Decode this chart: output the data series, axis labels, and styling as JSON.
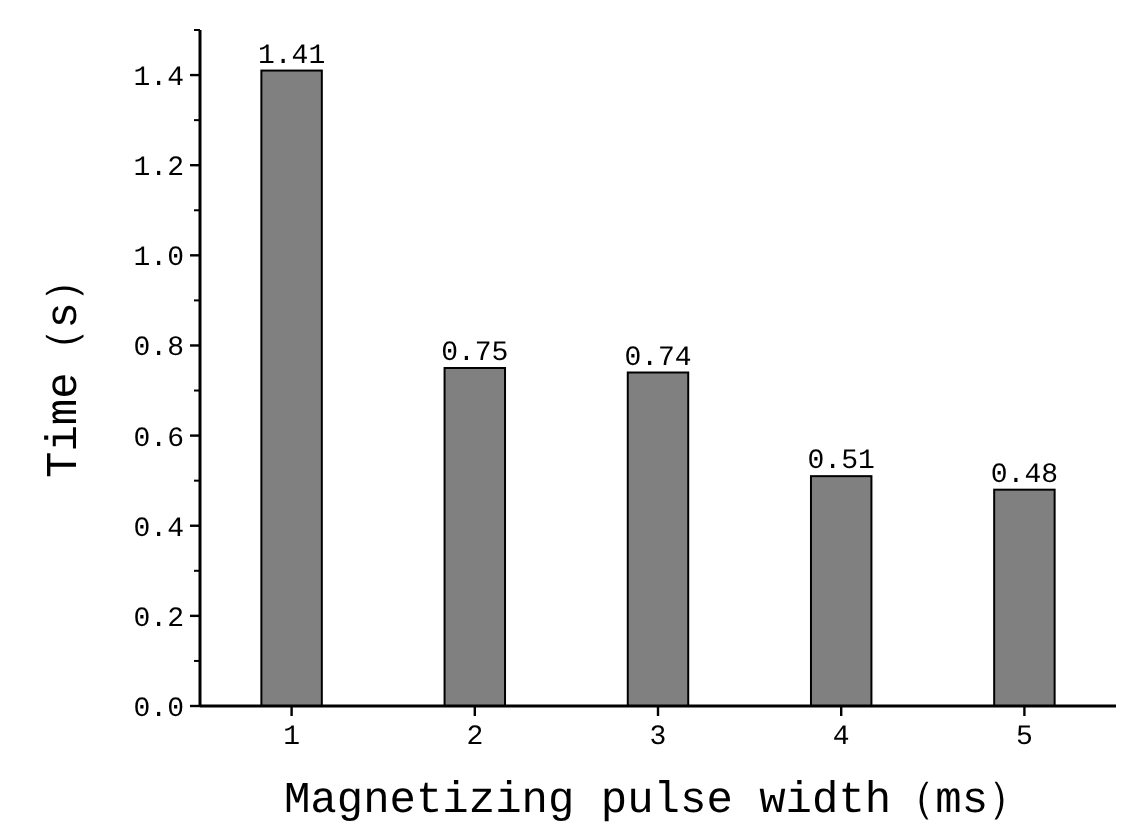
{
  "chart_data": {
    "type": "bar",
    "xlabel": "Magnetizing pulse width（ms）",
    "ylabel": "Time（s）",
    "categories": [
      "1",
      "2",
      "3",
      "4",
      "5"
    ],
    "values": [
      1.41,
      0.75,
      0.74,
      0.51,
      0.48
    ],
    "color": "#808080",
    "ylim": [
      0,
      1.5
    ],
    "yticks": [
      {
        "value": 0,
        "label": "0.0"
      },
      {
        "value": 0.2,
        "label": "0.2"
      },
      {
        "value": 0.4,
        "label": "0.4"
      },
      {
        "value": 0.6,
        "label": "0.6"
      },
      {
        "value": 0.8,
        "label": "0.8"
      },
      {
        "value": 1.0,
        "label": "1.0"
      },
      {
        "value": 1.2,
        "label": "1.2"
      },
      {
        "value": 1.4,
        "label": "1.4"
      }
    ],
    "data_labels": true,
    "grid": false
  }
}
